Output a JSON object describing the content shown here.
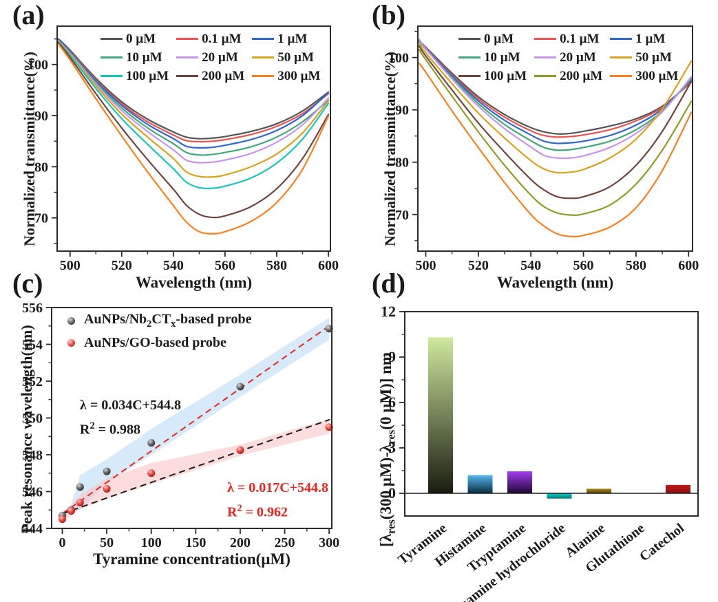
{
  "figure": {
    "panel_labels": {
      "a": "(a)",
      "b": "(b)",
      "c": "(c)",
      "d": "(d)"
    }
  },
  "panel_c": {
    "legend": {
      "nb": {
        "p1": "AuNPs/Nb",
        "s1": "2",
        "p2": "CT",
        "s2": "x",
        "p3": "-based probe"
      },
      "go": {
        "p1": "AuNPs/GO-based probe"
      }
    },
    "annotations": {
      "black": {
        "eq": "λ = 0.034C+544.8",
        "r_base": "R",
        "r_sup": "2",
        "r_rest": " = 0.988"
      },
      "red": {
        "eq": "λ = 0.017C+544.8",
        "r_base": "R",
        "r_sup": "2",
        "r_rest": " = 0.962"
      }
    }
  },
  "panel_d": {
    "ylabel": {
      "p1": "[λ",
      "s1": "res",
      "p2": "(300 µM)-λ",
      "s2": "res",
      "p3": "(0 µM)] nm"
    }
  },
  "chart_data": [
    {
      "id": "a",
      "type": "line",
      "xlabel": "Wavelength (nm)",
      "ylabel": "Normalized transmittance(%)",
      "xlim": [
        495,
        600.8
      ],
      "ylim": [
        63.5,
        107.5
      ],
      "xticks": [
        500,
        520,
        540,
        560,
        580,
        600
      ],
      "xminor": [
        510,
        530,
        550,
        570,
        590
      ],
      "yticks": [
        70,
        80,
        90,
        100
      ],
      "yminor": [
        65,
        75,
        85,
        95,
        105
      ],
      "legend_position": "top-inside",
      "x": [
        495.5,
        500,
        510,
        520,
        530,
        540,
        545,
        550,
        555,
        560,
        570,
        580,
        590,
        600
      ],
      "series": [
        {
          "name": "0 µM",
          "color": "#555555",
          "values": [
            105.0,
            102.8,
            97.3,
            92.7,
            89.3,
            86.8,
            85.8,
            85.5,
            85.6,
            85.9,
            86.9,
            88.4,
            90.9,
            94.6
          ]
        },
        {
          "name": "0.1 µM",
          "color": "#f2504e",
          "values": [
            104.8,
            102.6,
            97.0,
            92.3,
            88.8,
            86.2,
            85.1,
            84.9,
            85.0,
            85.3,
            86.3,
            87.9,
            90.4,
            94.3
          ]
        },
        {
          "name": "1 µM",
          "color": "#2f66d0",
          "values": [
            104.9,
            102.5,
            96.8,
            92.0,
            88.3,
            85.5,
            84.0,
            83.7,
            83.8,
            84.2,
            85.3,
            87.1,
            90.0,
            94.5
          ]
        },
        {
          "name": "10 µM",
          "color": "#3fa97c",
          "values": [
            104.7,
            102.3,
            96.5,
            91.5,
            87.6,
            84.5,
            82.8,
            82.3,
            82.4,
            82.8,
            83.9,
            85.8,
            88.8,
            93.0
          ]
        },
        {
          "name": "20 µM",
          "color": "#c795ea",
          "values": [
            104.6,
            102.2,
            96.2,
            91.0,
            86.9,
            83.3,
            81.3,
            80.8,
            80.9,
            81.3,
            82.6,
            84.8,
            88.2,
            93.4
          ]
        },
        {
          "name": "50 µM",
          "color": "#d8a41f",
          "values": [
            104.5,
            102.0,
            95.8,
            90.3,
            85.8,
            81.6,
            79.0,
            78.1,
            78.0,
            78.4,
            80.0,
            82.5,
            86.6,
            92.9
          ]
        },
        {
          "name": "100 µM",
          "color": "#19c6ba",
          "values": [
            104.4,
            101.8,
            95.3,
            89.4,
            84.4,
            79.6,
            77.0,
            75.9,
            75.8,
            76.2,
            77.8,
            80.7,
            85.4,
            92.4
          ]
        },
        {
          "name": "200 µM",
          "color": "#6e463e",
          "values": [
            104.3,
            101.4,
            94.3,
            87.6,
            81.4,
            75.6,
            72.5,
            70.7,
            70.1,
            70.4,
            72.2,
            75.7,
            81.6,
            90.2
          ]
        },
        {
          "name": "300 µM",
          "color": "#f88020",
          "values": [
            104.0,
            100.9,
            93.3,
            86.0,
            79.0,
            72.4,
            69.2,
            67.3,
            66.9,
            67.3,
            69.3,
            73.0,
            79.5,
            89.9
          ]
        }
      ]
    },
    {
      "id": "b",
      "type": "line",
      "xlabel": "Wavelength (nm)",
      "ylabel": "Normalized transmittance(%)",
      "xlim": [
        497,
        601.5
      ],
      "ylim": [
        63,
        106
      ],
      "xticks": [
        500,
        520,
        540,
        560,
        580,
        600
      ],
      "xminor": [
        510,
        530,
        550,
        570,
        590
      ],
      "yticks": [
        70,
        80,
        90,
        100
      ],
      "yminor": [
        65,
        75,
        85,
        95,
        105
      ],
      "legend_position": "top-inside",
      "x": [
        497.5,
        500,
        510,
        520,
        530,
        540,
        545,
        550,
        555,
        560,
        570,
        580,
        590,
        601
      ],
      "series": [
        {
          "name": "0 µM",
          "color": "#555555",
          "values": [
            103.2,
            102.0,
            97.0,
            92.5,
            89.1,
            86.6,
            85.8,
            85.4,
            85.5,
            85.9,
            86.9,
            88.3,
            90.7,
            95.3
          ]
        },
        {
          "name": "0.1 µM",
          "color": "#f2504e",
          "values": [
            103.3,
            101.9,
            96.7,
            92.1,
            88.6,
            86.0,
            85.1,
            84.8,
            84.9,
            85.2,
            86.2,
            87.9,
            90.5,
            95.5
          ]
        },
        {
          "name": "1 µM",
          "color": "#2f66d0",
          "values": [
            103.4,
            101.8,
            96.5,
            91.7,
            88.0,
            85.2,
            84.0,
            83.6,
            83.7,
            84.0,
            85.1,
            87.1,
            90.2,
            95.8
          ]
        },
        {
          "name": "10 µM",
          "color": "#3fa97c",
          "values": [
            103.1,
            101.6,
            96.2,
            91.2,
            87.2,
            84.1,
            82.8,
            82.3,
            82.4,
            82.8,
            84.0,
            86.2,
            89.8,
            96.0
          ]
        },
        {
          "name": "20 µM",
          "color": "#c795ea",
          "values": [
            103.5,
            101.7,
            95.9,
            90.7,
            86.4,
            82.9,
            81.3,
            80.8,
            80.8,
            81.2,
            82.8,
            85.5,
            89.6,
            96.3
          ]
        },
        {
          "name": "50 µM",
          "color": "#d8a41f",
          "values": [
            102.8,
            100.9,
            95.0,
            89.4,
            84.6,
            80.3,
            78.7,
            78.0,
            78.1,
            78.6,
            80.8,
            84.4,
            90.2,
            99.3
          ]
        },
        {
          "name": "100 µM",
          "color": "#6e463e",
          "values": [
            102.2,
            100.3,
            93.8,
            87.5,
            81.9,
            76.7,
            74.7,
            73.4,
            73.1,
            73.4,
            75.3,
            79.4,
            85.9,
            95.4
          ]
        },
        {
          "name": "200 µM",
          "color": "#8e9b24",
          "values": [
            101.5,
            99.6,
            92.6,
            85.8,
            79.4,
            73.7,
            71.5,
            70.3,
            69.9,
            70.1,
            71.8,
            75.8,
            82.3,
            91.6
          ]
        },
        {
          "name": "300 µM",
          "color": "#f88020",
          "values": [
            98.9,
            97.2,
            89.8,
            82.8,
            76.1,
            70.0,
            67.8,
            66.3,
            65.8,
            66.0,
            67.6,
            71.3,
            78.4,
            89.5
          ]
        }
      ]
    },
    {
      "id": "c",
      "type": "scatter",
      "xlabel": "Tyramine concentration(µM)",
      "ylabel": "Peak resonance wavelength(nm)",
      "xlim": [
        -12,
        303
      ],
      "ylim": [
        544,
        556
      ],
      "xticks": [
        0,
        50,
        100,
        150,
        200,
        250,
        300
      ],
      "xminor": [
        25,
        75,
        125,
        175,
        225,
        275
      ],
      "yticks": [
        544,
        546,
        548,
        550,
        552,
        554,
        556
      ],
      "yminor": [
        545,
        547,
        549,
        551,
        553,
        555
      ],
      "series": [
        {
          "name": "AuNPs/Nb2CTx-based probe",
          "marker_color": "#454545",
          "points": [
            [
              0,
              544.7
            ],
            [
              10,
              545.0
            ],
            [
              20,
              546.25
            ],
            [
              50,
              547.1
            ],
            [
              100,
              548.65
            ],
            [
              200,
              551.7
            ],
            [
              300,
              554.85
            ]
          ],
          "fit": {
            "slope": 0.034,
            "intercept": 544.8,
            "line_color": "#e8251f",
            "label": "λ = 0.034C+544.8",
            "r2": "R2 = 0.988"
          },
          "band_color": "rgba(186,220,246,0.6)",
          "band": [
            [
              0,
              544.85
            ],
            [
              10,
              545.3
            ],
            [
              20,
              546.9
            ],
            [
              50,
              547.75
            ],
            [
              100,
              549.4
            ],
            [
              200,
              552.35
            ],
            [
              300,
              555.45
            ],
            [
              300,
              554.25
            ],
            [
              200,
              551.15
            ],
            [
              100,
              548.0
            ],
            [
              50,
              546.45
            ],
            [
              20,
              545.0
            ],
            [
              10,
              544.85
            ],
            [
              0,
              544.55
            ]
          ]
        },
        {
          "name": "AuNPs/GO-based probe",
          "marker_color": "#e6403a",
          "points": [
            [
              0,
              544.5
            ],
            [
              10,
              544.95
            ],
            [
              20,
              545.4
            ],
            [
              50,
              546.15
            ],
            [
              100,
              547.0
            ],
            [
              200,
              548.25
            ],
            [
              300,
              549.5
            ]
          ],
          "fit": {
            "slope": 0.017,
            "intercept": 544.8,
            "line_color": "#1c1c1c",
            "label": "λ = 0.017C+544.8",
            "r2": "R2 = 0.962"
          },
          "band_color": "rgba(249,193,193,0.55)",
          "band": [
            [
              0,
              544.8
            ],
            [
              10,
              545.25
            ],
            [
              20,
              545.85
            ],
            [
              50,
              546.7
            ],
            [
              100,
              547.55
            ],
            [
              200,
              548.55
            ],
            [
              300,
              549.95
            ],
            [
              300,
              549.15
            ],
            [
              200,
              547.95
            ],
            [
              100,
              546.4
            ],
            [
              50,
              545.6
            ],
            [
              20,
              545.05
            ],
            [
              10,
              544.75
            ],
            [
              0,
              544.35
            ]
          ]
        }
      ]
    },
    {
      "id": "d",
      "type": "bar",
      "ylabel": "[λres(300 µM)-λres(0 µM)] nm",
      "ylim": [
        -1.5,
        12
      ],
      "yticks": [
        0,
        3,
        6,
        9,
        12
      ],
      "yminor": [
        1.5,
        4.5,
        7.5,
        10.5
      ],
      "categories": [
        "Tyramine",
        "Histamine",
        "Tryptamine",
        "Dopamine hydrochloride",
        "Alanine",
        "Glutathione",
        "Catechol"
      ],
      "values": [
        10.3,
        1.2,
        1.45,
        -0.35,
        0.3,
        0,
        0.55
      ],
      "bar_colors_top": [
        "#cfe99e",
        "#55b7ee",
        "#a43cf2",
        "#0cc9c6",
        "#a8841c",
        "#999999",
        "#c41a1a"
      ],
      "bar_colors_bottom": [
        "#191c10",
        "#082c40",
        "#1e0934",
        "#04807d",
        "#5c4406",
        "#999999",
        "#8c0f0f"
      ]
    }
  ]
}
